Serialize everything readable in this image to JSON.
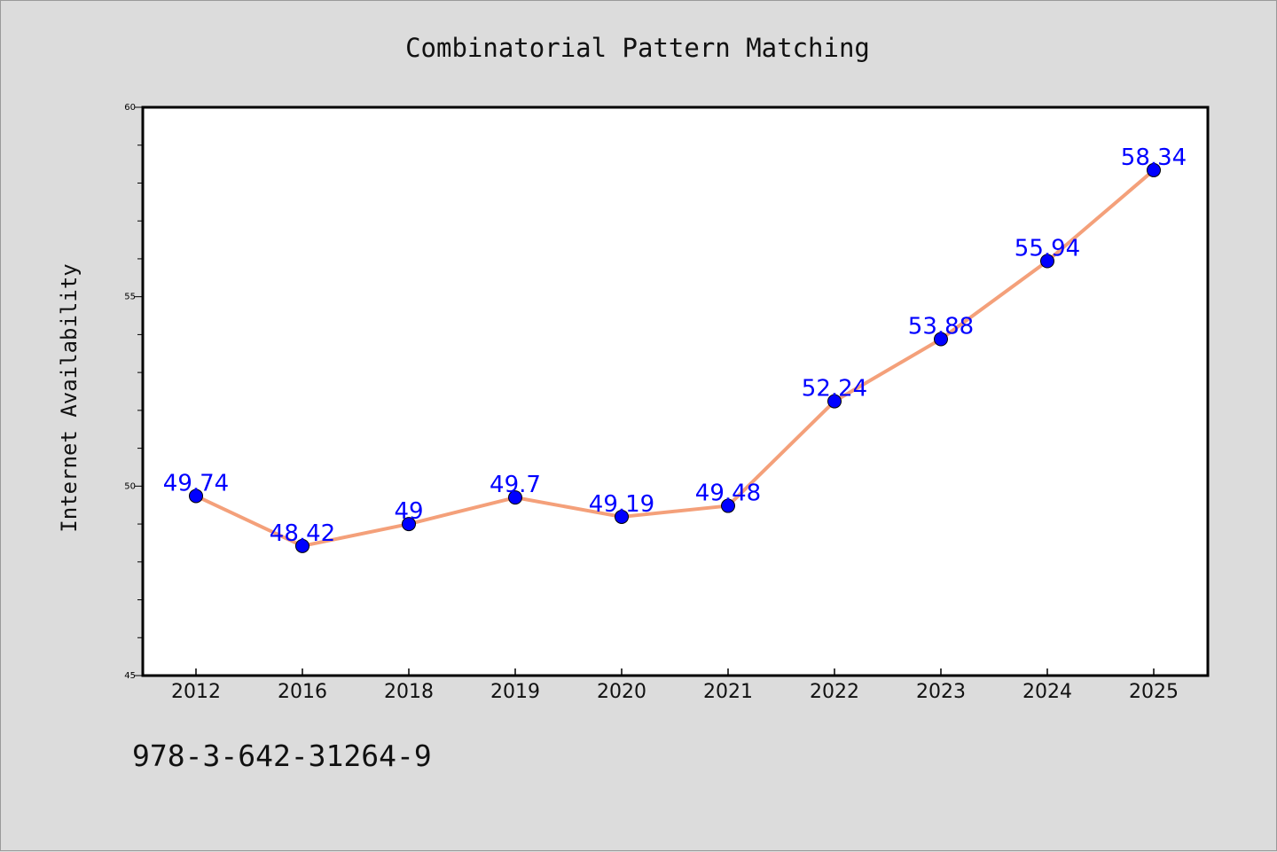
{
  "chart_data": {
    "type": "line",
    "title": "Combinatorial Pattern Matching",
    "xlabel": "",
    "ylabel": "Internet Availability",
    "categories": [
      "2012",
      "2016",
      "2018",
      "2019",
      "2020",
      "2021",
      "2022",
      "2023",
      "2024",
      "2025"
    ],
    "series": [
      {
        "values": [
          49.74,
          48.42,
          49,
          49.7,
          49.19,
          49.48,
          52.24,
          53.88,
          55.94,
          58.34
        ],
        "labels": [
          "49.74",
          "48.42",
          "49",
          "49.7",
          "49.19",
          "49.48",
          "52.24",
          "53.88",
          "55.94",
          "58.34"
        ],
        "line_color": "#f4a07a",
        "marker_color": "#0000ff",
        "label_color": "#0000ff"
      }
    ],
    "ylim": [
      45,
      60
    ],
    "yticks": [
      "45",
      "50",
      "55",
      "60"
    ],
    "grid": false,
    "legend": "none"
  },
  "footer": {
    "code": "978-3-642-31264-9"
  },
  "colors": {
    "background": "#dcdcdc",
    "plot_area": "#ffffff",
    "axes": "#000000"
  }
}
